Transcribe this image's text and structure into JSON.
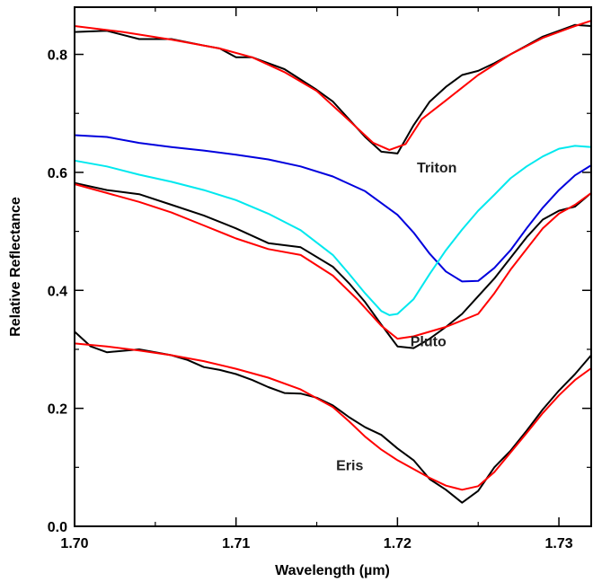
{
  "chart_data": {
    "type": "line",
    "title": "",
    "xlabel": "Wavelength (µm)",
    "ylabel": "Relative Reflectance",
    "xlim": [
      1.7,
      1.732
    ],
    "ylim": [
      0.0,
      0.88
    ],
    "x_ticks": [
      {
        "value": 1.7,
        "label": "1.70"
      },
      {
        "value": 1.71,
        "label": "1.71"
      },
      {
        "value": 1.72,
        "label": "1.72"
      },
      {
        "value": 1.73,
        "label": "1.73"
      }
    ],
    "y_ticks": [
      {
        "value": 0.0,
        "label": "0.0"
      },
      {
        "value": 0.2,
        "label": "0.2"
      },
      {
        "value": 0.4,
        "label": "0.4"
      },
      {
        "value": 0.6,
        "label": "0.6"
      },
      {
        "value": 0.8,
        "label": "0.8"
      }
    ],
    "grid": false,
    "legend": "none",
    "annotations": [
      {
        "text": "Triton",
        "x": 1.7212,
        "y": 0.6
      },
      {
        "text": "Pluto",
        "x": 1.7208,
        "y": 0.305
      },
      {
        "text": "Eris",
        "x": 1.7162,
        "y": 0.095
      }
    ],
    "series": [
      {
        "color": "#000000",
        "x": [
          1.7,
          1.702,
          1.704,
          1.706,
          1.708,
          1.709,
          1.71,
          1.711,
          1.713,
          1.715,
          1.716,
          1.717,
          1.718,
          1.719,
          1.72,
          1.721,
          1.722,
          1.723,
          1.724,
          1.725,
          1.726,
          1.727,
          1.728,
          1.729,
          1.73,
          1.731,
          1.732
        ],
        "y": [
          0.838,
          0.84,
          0.826,
          0.826,
          0.815,
          0.81,
          0.795,
          0.795,
          0.775,
          0.74,
          0.72,
          0.69,
          0.66,
          0.635,
          0.632,
          0.68,
          0.72,
          0.745,
          0.765,
          0.772,
          0.785,
          0.8,
          0.815,
          0.83,
          0.84,
          0.85,
          0.848
        ]
      },
      {
        "color": "#ff0000",
        "x": [
          1.7,
          1.703,
          1.706,
          1.709,
          1.711,
          1.713,
          1.715,
          1.717,
          1.7185,
          1.7195,
          1.7205,
          1.7215,
          1.723,
          1.725,
          1.727,
          1.729,
          1.731,
          1.732
        ],
        "y": [
          0.848,
          0.838,
          0.825,
          0.81,
          0.795,
          0.77,
          0.738,
          0.688,
          0.65,
          0.638,
          0.648,
          0.69,
          0.722,
          0.765,
          0.8,
          0.828,
          0.848,
          0.857
        ]
      },
      {
        "color": "#0000dd",
        "x": [
          1.7,
          1.702,
          1.704,
          1.706,
          1.708,
          1.71,
          1.712,
          1.714,
          1.716,
          1.718,
          1.72,
          1.721,
          1.722,
          1.723,
          1.724,
          1.725,
          1.726,
          1.727,
          1.728,
          1.729,
          1.73,
          1.731,
          1.732
        ],
        "y": [
          0.663,
          0.66,
          0.65,
          0.643,
          0.637,
          0.63,
          0.622,
          0.61,
          0.593,
          0.568,
          0.528,
          0.498,
          0.462,
          0.432,
          0.415,
          0.416,
          0.438,
          0.468,
          0.505,
          0.54,
          0.57,
          0.595,
          0.612
        ]
      },
      {
        "color": "#00e8ee",
        "x": [
          1.7,
          1.702,
          1.704,
          1.706,
          1.708,
          1.71,
          1.712,
          1.714,
          1.716,
          1.717,
          1.718,
          1.719,
          1.7195,
          1.72,
          1.721,
          1.722,
          1.723,
          1.724,
          1.725,
          1.726,
          1.727,
          1.728,
          1.729,
          1.73,
          1.731,
          1.732
        ],
        "y": [
          0.62,
          0.61,
          0.596,
          0.584,
          0.57,
          0.553,
          0.53,
          0.502,
          0.46,
          0.428,
          0.395,
          0.365,
          0.358,
          0.36,
          0.385,
          0.428,
          0.468,
          0.503,
          0.535,
          0.562,
          0.59,
          0.61,
          0.627,
          0.64,
          0.645,
          0.643
        ]
      },
      {
        "color": "#000000",
        "x": [
          1.7,
          1.702,
          1.704,
          1.706,
          1.708,
          1.71,
          1.712,
          1.714,
          1.716,
          1.717,
          1.718,
          1.719,
          1.72,
          1.721,
          1.722,
          1.723,
          1.724,
          1.725,
          1.726,
          1.727,
          1.728,
          1.729,
          1.73,
          1.731,
          1.732
        ],
        "y": [
          0.582,
          0.57,
          0.563,
          0.545,
          0.527,
          0.505,
          0.48,
          0.473,
          0.44,
          0.412,
          0.38,
          0.342,
          0.305,
          0.302,
          0.318,
          0.338,
          0.36,
          0.39,
          0.42,
          0.455,
          0.49,
          0.52,
          0.535,
          0.542,
          0.565
        ]
      },
      {
        "color": "#ff0000",
        "x": [
          1.7,
          1.702,
          1.704,
          1.706,
          1.708,
          1.71,
          1.712,
          1.714,
          1.716,
          1.7175,
          1.719,
          1.72,
          1.721,
          1.723,
          1.725,
          1.726,
          1.727,
          1.728,
          1.729,
          1.73,
          1.731,
          1.732
        ],
        "y": [
          0.58,
          0.565,
          0.55,
          0.532,
          0.51,
          0.488,
          0.47,
          0.46,
          0.425,
          0.385,
          0.34,
          0.318,
          0.322,
          0.338,
          0.36,
          0.395,
          0.435,
          0.47,
          0.505,
          0.53,
          0.545,
          0.565
        ]
      },
      {
        "color": "#000000",
        "x": [
          1.7,
          1.701,
          1.702,
          1.704,
          1.706,
          1.707,
          1.708,
          1.709,
          1.71,
          1.711,
          1.712,
          1.713,
          1.714,
          1.715,
          1.716,
          1.717,
          1.718,
          1.719,
          1.72,
          1.721,
          1.722,
          1.723,
          1.724,
          1.725,
          1.726,
          1.727,
          1.728,
          1.729,
          1.73,
          1.731,
          1.732
        ],
        "y": [
          0.33,
          0.305,
          0.295,
          0.3,
          0.29,
          0.282,
          0.27,
          0.265,
          0.258,
          0.248,
          0.236,
          0.226,
          0.225,
          0.218,
          0.205,
          0.185,
          0.168,
          0.155,
          0.132,
          0.112,
          0.08,
          0.062,
          0.04,
          0.06,
          0.1,
          0.128,
          0.162,
          0.198,
          0.23,
          0.258,
          0.29
        ]
      },
      {
        "color": "#ff0000",
        "x": [
          1.7,
          1.702,
          1.704,
          1.706,
          1.708,
          1.71,
          1.712,
          1.714,
          1.716,
          1.717,
          1.718,
          1.719,
          1.72,
          1.721,
          1.722,
          1.723,
          1.724,
          1.725,
          1.726,
          1.727,
          1.728,
          1.729,
          1.73,
          1.731,
          1.732
        ],
        "y": [
          0.31,
          0.305,
          0.298,
          0.29,
          0.28,
          0.267,
          0.252,
          0.232,
          0.202,
          0.178,
          0.152,
          0.13,
          0.112,
          0.097,
          0.082,
          0.069,
          0.062,
          0.068,
          0.092,
          0.125,
          0.158,
          0.192,
          0.222,
          0.248,
          0.268
        ]
      }
    ]
  }
}
